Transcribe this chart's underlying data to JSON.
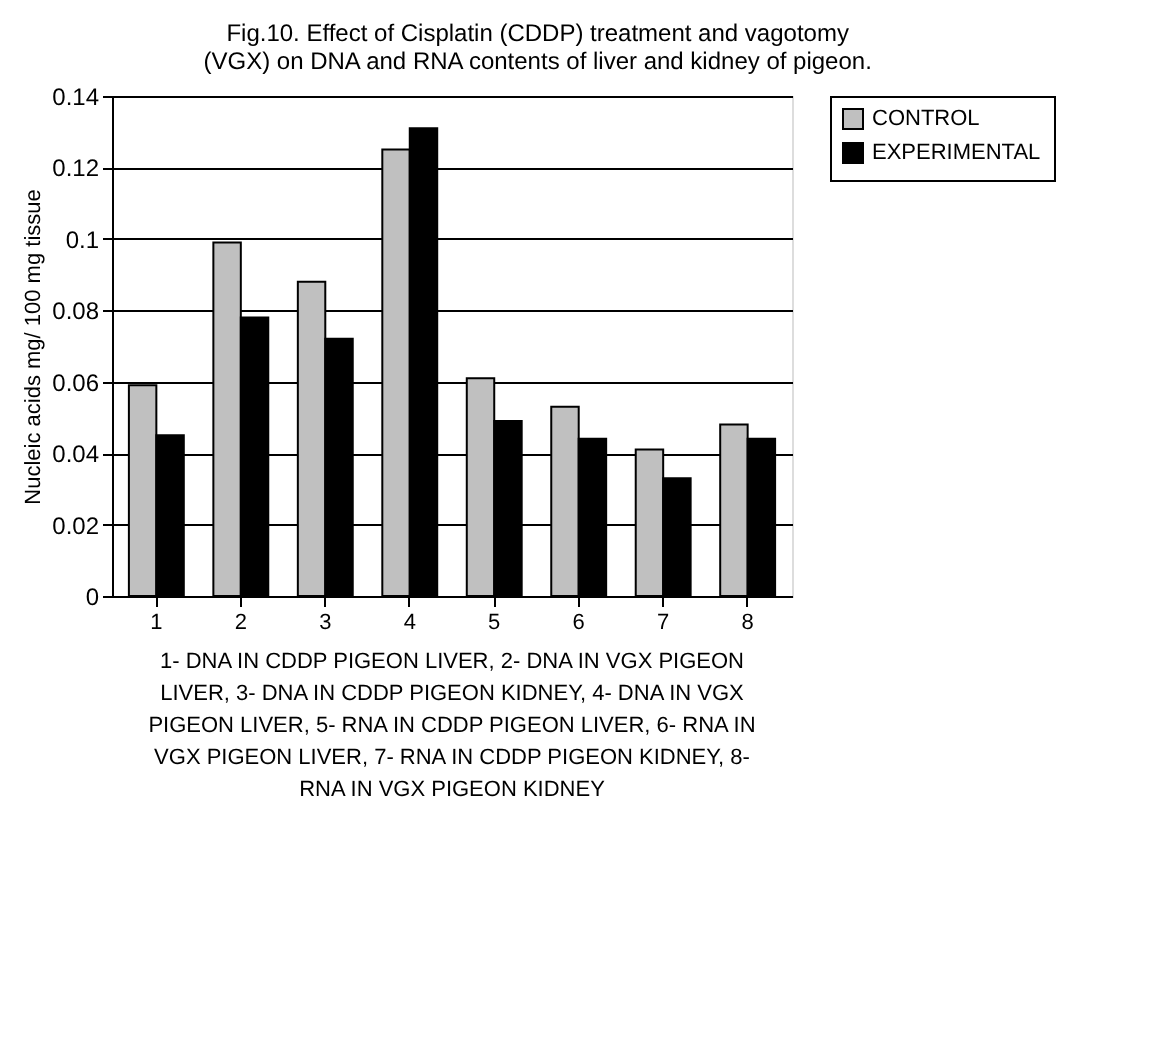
{
  "chart_data": {
    "type": "bar",
    "title": "Fig.10. Effect of Cisplatin (CDDP) treatment and vagotomy (VGX) on DNA and RNA contents of liver and kidney of pigeon.",
    "ylabel": "Nucleic acids mg/ 100 mg tissue",
    "categories": [
      "1",
      "2",
      "3",
      "4",
      "5",
      "6",
      "7",
      "8"
    ],
    "series": [
      {
        "name": "CONTROL",
        "color": "#c0c0c0",
        "values": [
          0.059,
          0.099,
          0.088,
          0.125,
          0.061,
          0.053,
          0.041,
          0.048
        ]
      },
      {
        "name": "EXPERIMENTAL",
        "color": "#000000",
        "values": [
          0.045,
          0.078,
          0.072,
          0.131,
          0.049,
          0.044,
          0.033,
          0.044
        ]
      }
    ],
    "ylim": [
      0,
      0.14
    ],
    "yticks": [
      0,
      0.02,
      0.04,
      0.06,
      0.08,
      0.1,
      0.12,
      0.14
    ],
    "grid": "y",
    "legend": "right",
    "annotations": [
      "1- DNA IN CDDP PIGEON LIVER, 2- DNA IN VGX PIGEON LIVER, 3- DNA IN CDDP PIGEON KIDNEY, 4- DNA IN VGX PIGEON LIVER, 5- RNA IN CDDP PIGEON LIVER, 6- RNA IN VGX PIGEON LIVER, 7- RNA IN CDDP PIGEON KIDNEY, 8- RNA IN VGX PIGEON KIDNEY"
    ]
  }
}
